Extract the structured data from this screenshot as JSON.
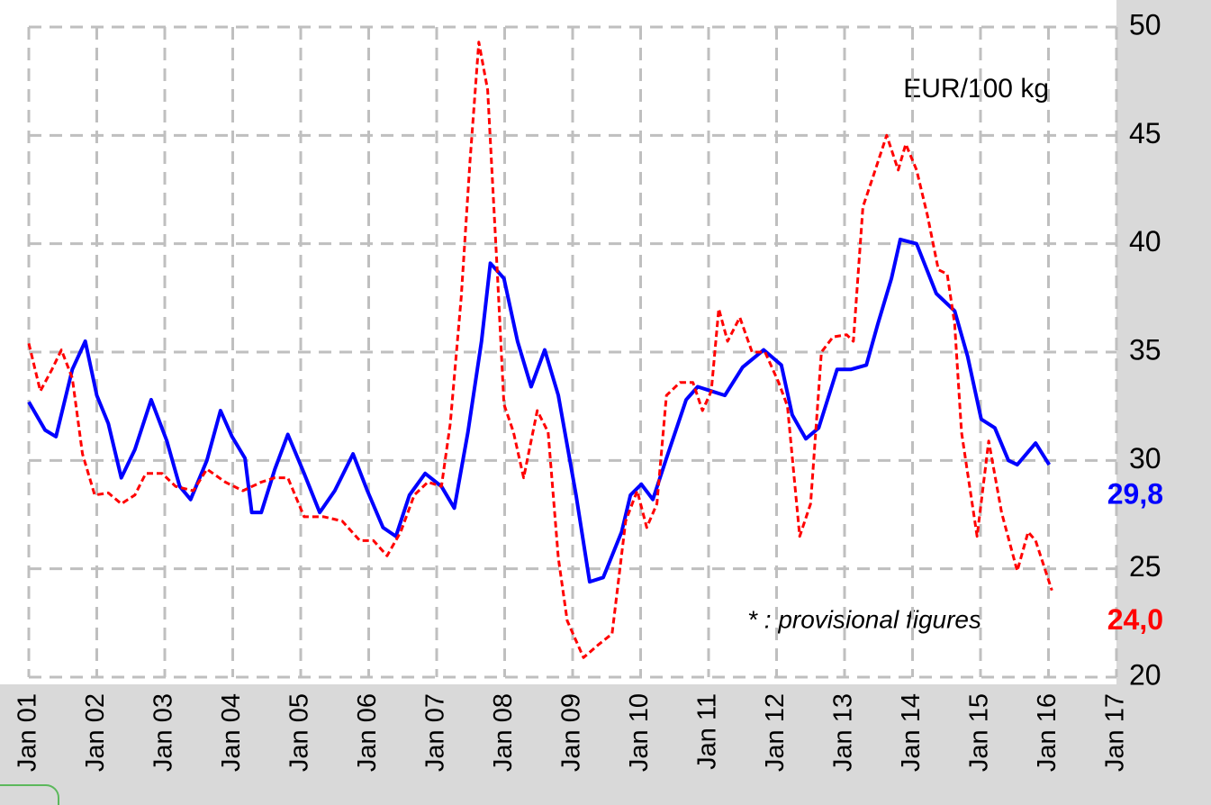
{
  "chart_data": {
    "type": "line",
    "annotations": [
      "EUR/100 kg",
      "* : provisional figures"
    ],
    "xlim": [
      2001,
      2017
    ],
    "xticks": [
      {
        "value": 2001,
        "label": "Jan 01"
      },
      {
        "value": 2002,
        "label": "Jan 02"
      },
      {
        "value": 2003,
        "label": "Jan 03"
      },
      {
        "value": 2004,
        "label": "Jan 04"
      },
      {
        "value": 2005,
        "label": "Jan 05"
      },
      {
        "value": 2006,
        "label": "Jan 06"
      },
      {
        "value": 2007,
        "label": "Jan 07"
      },
      {
        "value": 2008,
        "label": "Jan 08"
      },
      {
        "value": 2009,
        "label": "Jan 09"
      },
      {
        "value": 2010,
        "label": "Jan 10"
      },
      {
        "value": 2011,
        "label": "Jan 11"
      },
      {
        "value": 2012,
        "label": "Jan 12"
      },
      {
        "value": 2013,
        "label": "Jan 13"
      },
      {
        "value": 2014,
        "label": "Jan 14"
      },
      {
        "value": 2015,
        "label": "Jan 15"
      },
      {
        "value": 2016,
        "label": "Jan 16"
      },
      {
        "value": 2017,
        "label": "Jan 17"
      }
    ],
    "ylim": [
      20,
      50
    ],
    "yticks": [
      20,
      25,
      30,
      35,
      40,
      45,
      50
    ],
    "y_axis_side": "right",
    "grid": true,
    "series": [
      {
        "color": "#0000ff",
        "dashed": false,
        "end_label": "29,8",
        "x": [
          2001.0,
          2001.24,
          2001.4,
          2001.64,
          2001.83,
          2002.0,
          2002.17,
          2002.36,
          2002.56,
          2002.8,
          2003.03,
          2003.22,
          2003.38,
          2003.62,
          2003.82,
          2003.99,
          2004.18,
          2004.28,
          2004.42,
          2004.62,
          2004.81,
          2005.05,
          2005.28,
          2005.5,
          2005.77,
          2005.98,
          2006.21,
          2006.4,
          2006.6,
          2006.83,
          2007.07,
          2007.26,
          2007.46,
          2007.66,
          2007.79,
          2007.99,
          2008.19,
          2008.39,
          2008.59,
          2008.79,
          2009.05,
          2009.25,
          2009.45,
          2009.72,
          2009.85,
          2010.01,
          2010.18,
          2010.38,
          2010.67,
          2010.84,
          2011.04,
          2011.24,
          2011.5,
          2011.81,
          2012.07,
          2012.23,
          2012.43,
          2012.62,
          2012.89,
          2013.09,
          2013.32,
          2013.49,
          2013.69,
          2013.82,
          2014.06,
          2014.35,
          2014.62,
          2014.81,
          2015.01,
          2015.21,
          2015.41,
          2015.54,
          2015.81,
          2016.01
        ],
        "values": [
          32.7,
          31.4,
          31.1,
          34.2,
          35.5,
          33.0,
          31.7,
          29.2,
          30.5,
          32.8,
          30.9,
          28.8,
          28.2,
          30.0,
          32.3,
          31.1,
          30.1,
          27.6,
          27.6,
          29.6,
          31.2,
          29.4,
          27.6,
          28.6,
          30.3,
          28.6,
          26.9,
          26.5,
          28.4,
          29.4,
          28.8,
          27.8,
          31.3,
          35.5,
          39.1,
          38.4,
          35.5,
          33.4,
          35.1,
          33.0,
          28.4,
          24.4,
          24.6,
          26.7,
          28.4,
          28.9,
          28.2,
          30.1,
          32.8,
          33.4,
          33.2,
          33.0,
          34.3,
          35.1,
          34.4,
          32.1,
          31.0,
          31.5,
          34.2,
          34.2,
          34.4,
          36.3,
          38.4,
          40.2,
          40.0,
          37.7,
          36.9,
          34.8,
          31.9,
          31.5,
          30.0,
          29.8,
          30.8,
          29.8
        ]
      },
      {
        "color": "#ff0000",
        "dashed": true,
        "end_label": "24,0",
        "x": [
          2001.0,
          2001.17,
          2001.34,
          2001.48,
          2001.64,
          2001.79,
          2001.97,
          2002.17,
          2002.36,
          2002.56,
          2002.72,
          2002.96,
          2003.16,
          2003.42,
          2003.62,
          2003.89,
          2004.15,
          2004.42,
          2004.62,
          2004.81,
          2005.05,
          2005.34,
          2005.61,
          2005.87,
          2006.07,
          2006.27,
          2006.47,
          2006.67,
          2006.87,
          2007.07,
          2007.2,
          2007.36,
          2007.49,
          2007.62,
          2007.75,
          2007.89,
          2007.99,
          2008.13,
          2008.28,
          2008.48,
          2008.64,
          2008.79,
          2008.92,
          2009.16,
          2009.38,
          2009.58,
          2009.78,
          2009.95,
          2010.09,
          2010.24,
          2010.38,
          2010.58,
          2010.77,
          2010.91,
          2011.04,
          2011.15,
          2011.28,
          2011.46,
          2011.64,
          2011.83,
          2012.03,
          2012.16,
          2012.34,
          2012.5,
          2012.66,
          2012.83,
          2013.03,
          2013.13,
          2013.27,
          2013.42,
          2013.62,
          2013.79,
          2013.9,
          2014.06,
          2014.22,
          2014.38,
          2014.51,
          2014.62,
          2014.72,
          2014.95,
          2015.12,
          2015.31,
          2015.54,
          2015.7,
          2015.81,
          2016.05
        ],
        "values": [
          35.4,
          33.2,
          34.2,
          35.1,
          33.8,
          30.3,
          28.4,
          28.5,
          28.0,
          28.4,
          29.4,
          29.4,
          28.8,
          28.6,
          29.6,
          29.0,
          28.6,
          29.0,
          29.2,
          29.2,
          27.4,
          27.4,
          27.2,
          26.3,
          26.3,
          25.6,
          26.7,
          28.4,
          29.0,
          28.8,
          31.7,
          37.5,
          43.8,
          49.3,
          47.1,
          38.8,
          32.6,
          31.3,
          29.2,
          32.3,
          31.3,
          25.5,
          22.6,
          20.9,
          21.5,
          22.0,
          27.2,
          28.6,
          26.9,
          28.0,
          33.0,
          33.6,
          33.6,
          32.3,
          33.2,
          37.0,
          35.5,
          36.6,
          35.0,
          35.0,
          33.6,
          32.5,
          26.5,
          28.0,
          35.0,
          35.7,
          35.8,
          35.5,
          41.7,
          43.1,
          45.0,
          43.4,
          44.6,
          43.4,
          41.3,
          38.8,
          38.6,
          36.3,
          31.3,
          26.5,
          30.9,
          27.6,
          24.9,
          26.7,
          26.3,
          24.0
        ]
      }
    ]
  }
}
